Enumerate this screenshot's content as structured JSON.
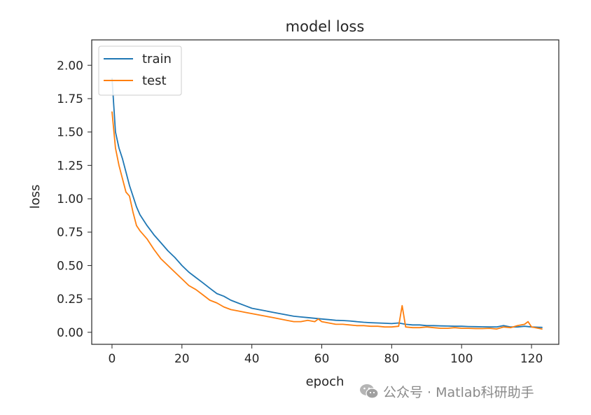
{
  "chart_data": {
    "type": "line",
    "title": "model loss",
    "xlabel": "epoch",
    "ylabel": "loss",
    "xlim": [
      -5.8,
      127.8
    ],
    "ylim": [
      -0.09,
      2.19
    ],
    "xticks": [
      0,
      20,
      40,
      60,
      80,
      100,
      120
    ],
    "xtick_labels": [
      "0",
      "20",
      "40",
      "60",
      "80",
      "100",
      "120"
    ],
    "yticks": [
      0.0,
      0.25,
      0.5,
      0.75,
      1.0,
      1.25,
      1.5,
      1.75,
      2.0
    ],
    "ytick_labels": [
      "0.00",
      "0.25",
      "0.50",
      "0.75",
      "1.00",
      "1.25",
      "1.50",
      "1.75",
      "2.00"
    ],
    "legend_position": "top-left",
    "grid": false,
    "series": [
      {
        "name": "train",
        "color": "#1f77b4",
        "x": [
          0,
          1,
          2,
          3,
          4,
          5,
          6,
          7,
          8,
          10,
          12,
          14,
          16,
          18,
          20,
          22,
          24,
          26,
          28,
          30,
          32,
          34,
          36,
          38,
          40,
          42,
          44,
          46,
          48,
          50,
          52,
          54,
          56,
          58,
          60,
          62,
          64,
          66,
          68,
          70,
          72,
          74,
          76,
          78,
          80,
          82,
          84,
          86,
          88,
          90,
          92,
          94,
          96,
          98,
          100,
          102,
          104,
          106,
          108,
          110,
          112,
          114,
          116,
          118,
          120,
          122,
          123
        ],
        "y": [
          1.9,
          1.5,
          1.38,
          1.3,
          1.2,
          1.1,
          1.02,
          0.94,
          0.88,
          0.8,
          0.73,
          0.67,
          0.61,
          0.56,
          0.5,
          0.45,
          0.41,
          0.37,
          0.33,
          0.29,
          0.27,
          0.24,
          0.22,
          0.2,
          0.18,
          0.17,
          0.16,
          0.15,
          0.14,
          0.13,
          0.12,
          0.115,
          0.11,
          0.105,
          0.1,
          0.095,
          0.09,
          0.088,
          0.085,
          0.08,
          0.075,
          0.072,
          0.07,
          0.068,
          0.065,
          0.07,
          0.06,
          0.055,
          0.055,
          0.05,
          0.05,
          0.048,
          0.047,
          0.045,
          0.045,
          0.043,
          0.042,
          0.041,
          0.04,
          0.04,
          0.05,
          0.04,
          0.04,
          0.045,
          0.04,
          0.038,
          0.037
        ]
      },
      {
        "name": "test",
        "color": "#ff7f0e",
        "x": [
          0,
          1,
          2,
          3,
          4,
          5,
          6,
          7,
          8,
          10,
          12,
          14,
          16,
          18,
          20,
          22,
          24,
          26,
          28,
          30,
          32,
          34,
          36,
          38,
          40,
          42,
          44,
          46,
          48,
          50,
          52,
          54,
          56,
          58,
          59,
          60,
          62,
          64,
          66,
          68,
          70,
          72,
          74,
          76,
          78,
          80,
          82,
          83,
          84,
          86,
          88,
          90,
          92,
          94,
          96,
          98,
          100,
          102,
          104,
          106,
          108,
          110,
          112,
          114,
          116,
          118,
          119,
          120,
          122,
          123
        ],
        "y": [
          1.65,
          1.38,
          1.25,
          1.15,
          1.05,
          1.02,
          0.9,
          0.8,
          0.76,
          0.7,
          0.62,
          0.55,
          0.5,
          0.45,
          0.4,
          0.35,
          0.32,
          0.28,
          0.24,
          0.22,
          0.19,
          0.17,
          0.16,
          0.15,
          0.14,
          0.13,
          0.12,
          0.11,
          0.1,
          0.09,
          0.08,
          0.08,
          0.09,
          0.08,
          0.1,
          0.08,
          0.07,
          0.06,
          0.06,
          0.055,
          0.05,
          0.05,
          0.045,
          0.045,
          0.04,
          0.04,
          0.045,
          0.2,
          0.04,
          0.035,
          0.035,
          0.04,
          0.035,
          0.03,
          0.03,
          0.035,
          0.03,
          0.03,
          0.028,
          0.028,
          0.03,
          0.025,
          0.04,
          0.035,
          0.05,
          0.06,
          0.08,
          0.04,
          0.03,
          0.025
        ]
      }
    ]
  },
  "watermark": {
    "text": "公众号 · Matlab科研助手",
    "icon": "wechat-icon"
  }
}
